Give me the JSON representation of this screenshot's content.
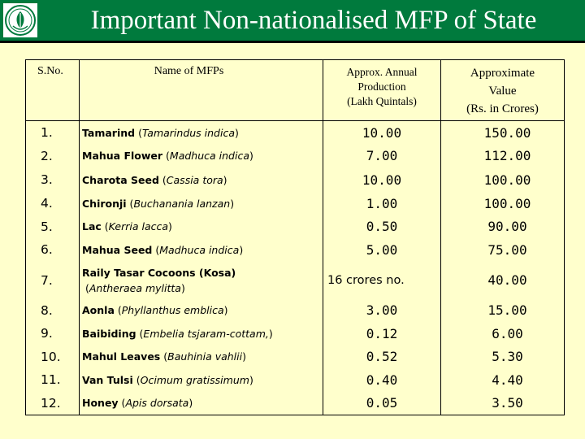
{
  "header": {
    "title": "Important Non-nationalised MFP of State",
    "logo": "forest-emblem",
    "accent": "#007a3d"
  },
  "table": {
    "columns": [
      "S.No.",
      "Name of MFPs",
      "Approx. Annual Production (Lakh Quintals)",
      "Approximate Value (Rs. in Crores)"
    ],
    "col_lines": {
      "production": [
        "Approx. Annual",
        "Production",
        "(Lakh Quintals)"
      ],
      "value": [
        "Approximate",
        "Value",
        "(Rs. in Crores)"
      ]
    },
    "rows": [
      {
        "sno": "1.",
        "common": "Tamarind",
        "scientific": "Tamarindus indica",
        "production": "10.00",
        "value": "150.00"
      },
      {
        "sno": "2.",
        "common": "Mahua Flower",
        "scientific": "Madhuca indica",
        "production": "7.00",
        "value": "112.00"
      },
      {
        "sno": "3.",
        "common": "Charota Seed",
        "scientific": "Cassia tora",
        "production": "10.00",
        "value": "100.00"
      },
      {
        "sno": "4.",
        "common": "Chironji",
        "scientific": "Buchanania lanzan",
        "production": "1.00",
        "value": "100.00"
      },
      {
        "sno": "5.",
        "common": "Lac",
        "scientific": "Kerria lacca",
        "production": "0.50",
        "value": "90.00"
      },
      {
        "sno": "6.",
        "common": "Mahua Seed",
        "scientific": "Madhuca indica",
        "production": "5.00",
        "value": "75.00"
      },
      {
        "sno": "7.",
        "common": "Raily Tasar Cocoons (Kosa)",
        "scientific": "Antheraea mylitta",
        "production": "16 crores no.",
        "value": "40.00"
      },
      {
        "sno": "8.",
        "common": "Aonla",
        "scientific": "Phyllanthus emblica",
        "production": "3.00",
        "value": "15.00"
      },
      {
        "sno": "9.",
        "common": "Baibiding",
        "scientific": "Embelia tsjaram-cottam,",
        "production": "0.12",
        "value": "6.00"
      },
      {
        "sno": "10.",
        "common": "Mahul Leaves",
        "scientific": "Bauhinia vahlii",
        "production": "0.52",
        "value": "5.30"
      },
      {
        "sno": "11.",
        "common": "Van Tulsi",
        "scientific": "Ocimum gratissimum",
        "production": "0.40",
        "value": "4.40"
      },
      {
        "sno": "12.",
        "common": "Honey",
        "scientific": "Apis dorsata",
        "production": "0.05",
        "value": "3.50"
      }
    ]
  }
}
